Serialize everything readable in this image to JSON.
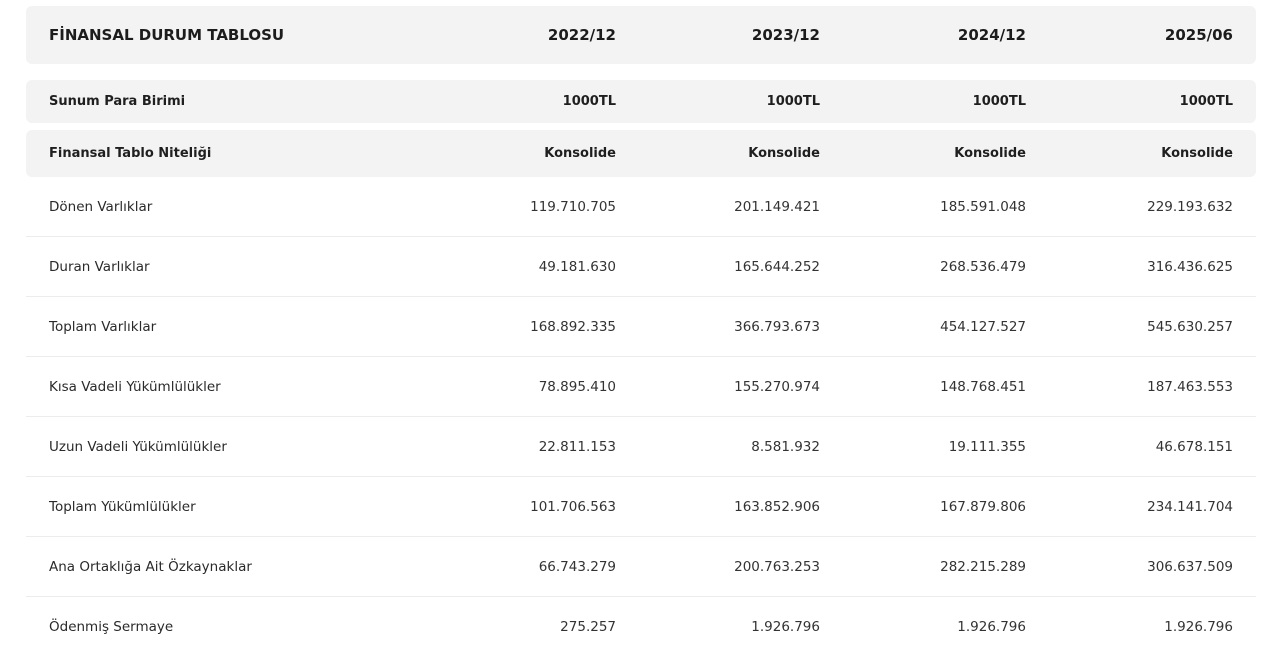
{
  "table": {
    "title": "FİNANSAL DURUM TABLOSU",
    "periods": [
      "2022/12",
      "2023/12",
      "2024/12",
      "2025/06"
    ],
    "meta_rows": [
      {
        "label": "Sunum Para Birimi",
        "values": [
          "1000TL",
          "1000TL",
          "1000TL",
          "1000TL"
        ]
      },
      {
        "label": "Finansal Tablo Niteliği",
        "values": [
          "Konsolide",
          "Konsolide",
          "Konsolide",
          "Konsolide"
        ]
      }
    ],
    "rows": [
      {
        "label": "Dönen Varlıklar",
        "values": [
          "119.710.705",
          "201.149.421",
          "185.591.048",
          "229.193.632"
        ]
      },
      {
        "label": "Duran Varlıklar",
        "values": [
          "49.181.630",
          "165.644.252",
          "268.536.479",
          "316.436.625"
        ]
      },
      {
        "label": "Toplam Varlıklar",
        "values": [
          "168.892.335",
          "366.793.673",
          "454.127.527",
          "545.630.257"
        ]
      },
      {
        "label": "Kısa Vadeli Yükümlülükler",
        "values": [
          "78.895.410",
          "155.270.974",
          "148.768.451",
          "187.463.553"
        ]
      },
      {
        "label": "Uzun Vadeli Yükümlülükler",
        "values": [
          "22.811.153",
          "8.581.932",
          "19.111.355",
          "46.678.151"
        ]
      },
      {
        "label": "Toplam Yükümlülükler",
        "values": [
          "101.706.563",
          "163.852.906",
          "167.879.806",
          "234.141.704"
        ]
      },
      {
        "label": "Ana Ortaklığa Ait Özkaynaklar",
        "values": [
          "66.743.279",
          "200.763.253",
          "282.215.289",
          "306.637.509"
        ]
      },
      {
        "label": "Ödenmiş Sermaye",
        "values": [
          "275.257",
          "1.926.796",
          "1.926.796",
          "1.926.796"
        ]
      }
    ]
  }
}
